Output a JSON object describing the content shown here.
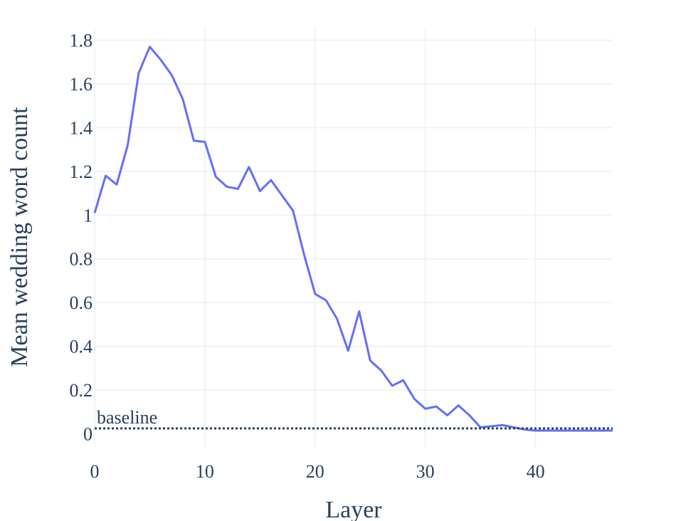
{
  "chart_data": {
    "type": "line",
    "title": "",
    "xlabel": "Layer",
    "ylabel": "Mean wedding word count",
    "xlim": [
      0,
      47
    ],
    "ylim": [
      -0.06,
      1.86
    ],
    "xticks": [
      0,
      10,
      20,
      30,
      40
    ],
    "xtick_labels": [
      "0",
      "10",
      "20",
      "30",
      "40"
    ],
    "yticks": [
      0,
      0.2,
      0.4,
      0.6,
      0.8,
      1,
      1.2,
      1.4,
      1.6,
      1.8
    ],
    "ytick_labels": [
      "0",
      "0.2",
      "0.4",
      "0.6",
      "0.8",
      "1",
      "1.2",
      "1.4",
      "1.6",
      "1.8"
    ],
    "grid": true,
    "series": [
      {
        "color": "#636efa",
        "x": [
          0,
          1,
          2,
          3,
          4,
          5,
          6,
          7,
          8,
          9,
          10,
          11,
          12,
          13,
          14,
          15,
          16,
          17,
          18,
          19,
          20,
          21,
          22,
          23,
          24,
          25,
          26,
          27,
          28,
          29,
          30,
          31,
          32,
          33,
          34,
          35,
          36,
          37,
          38,
          39,
          40,
          41,
          42,
          43,
          44,
          45,
          46,
          47
        ],
        "y": [
          1.01,
          1.18,
          1.14,
          1.32,
          1.65,
          1.77,
          1.71,
          1.64,
          1.53,
          1.34,
          1.335,
          1.175,
          1.13,
          1.12,
          1.22,
          1.11,
          1.16,
          1.09,
          1.02,
          0.82,
          0.64,
          0.61,
          0.525,
          0.38,
          0.56,
          0.335,
          0.29,
          0.22,
          0.245,
          0.16,
          0.115,
          0.125,
          0.085,
          0.13,
          0.085,
          0.03,
          0.035,
          0.04,
          0.03,
          0.02,
          0.015,
          0.015,
          0.015,
          0.015,
          0.015,
          0.015,
          0.015,
          0.015
        ]
      }
    ],
    "baseline": {
      "label": "baseline",
      "value": 0.025,
      "color": "#2a3f5f",
      "style": "dotted"
    }
  }
}
